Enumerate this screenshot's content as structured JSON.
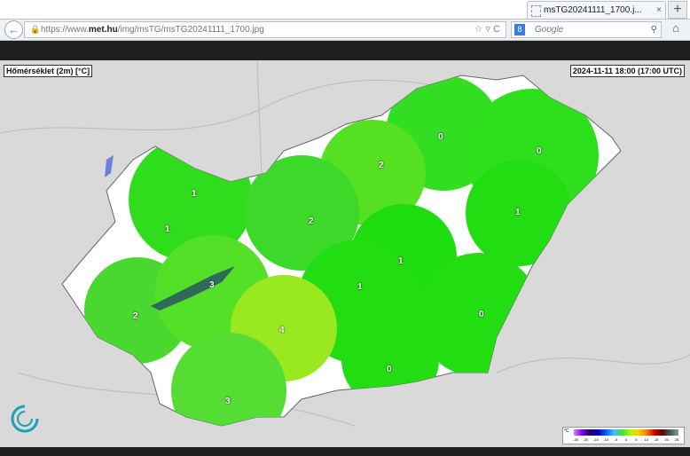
{
  "browser": {
    "tab_title": "msTG20241111_1700.j...",
    "close_label": "×",
    "new_tab_label": "+",
    "url_prefix": "https://www.",
    "url_domain": "met.hu",
    "url_path": "/img/msTG/msTG20241111_1700.jpg",
    "search_placeholder": "Google",
    "icons": [
      "back-icon",
      "lock-icon",
      "star-icon",
      "dropdown-icon",
      "reload-icon",
      "google-icon",
      "search-icon",
      "home-icon"
    ]
  },
  "map": {
    "title": "Hőmérséklet (2m) [°C]",
    "timestamp": "2024-11-11 18:00 (17:00 UTC)",
    "values": [
      "0",
      "0",
      "2",
      "1",
      "2",
      "1",
      "1",
      "1",
      "3",
      "1",
      "2",
      "0",
      "4",
      "0",
      "3"
    ],
    "legend": {
      "unit": "°C",
      "ticks": [
        "-25",
        "-20",
        "-15",
        "-10",
        "-5",
        "0",
        "5",
        "10",
        "15",
        "20",
        "25"
      ]
    },
    "colors": {
      "green": "#22dd11",
      "lime": "#88ee11",
      "water": "#2f6a5a"
    }
  }
}
